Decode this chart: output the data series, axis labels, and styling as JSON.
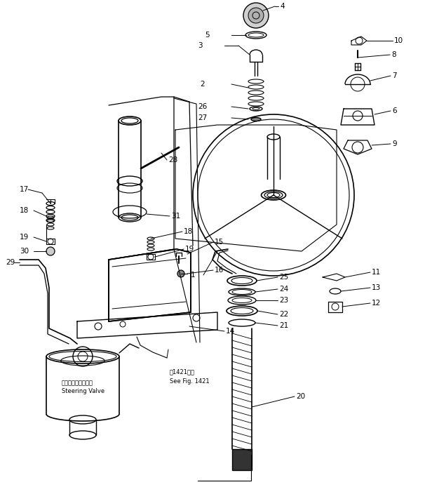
{
  "bg_color": "#ffffff",
  "line_color": "#000000",
  "annotation_sv_jp": "ステアリングバルブ",
  "annotation_sv_en": "Steering Valve",
  "annotation_fig_jp": "図1421参照",
  "annotation_fig_en": "See Fig. 1421"
}
